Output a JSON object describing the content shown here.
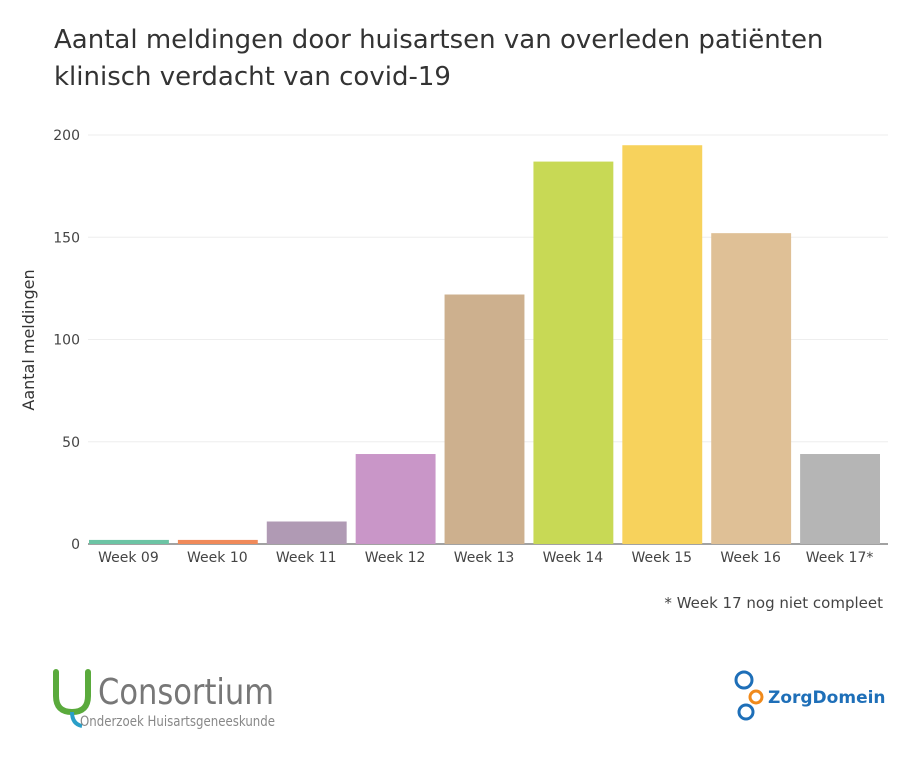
{
  "title_lines": [
    "Aantal meldingen door huisartsen van overleden patiënten",
    "klinisch verdacht van covid-19"
  ],
  "footnote": "* Week 17 nog niet compleet",
  "logos": {
    "consortium_main": "Consortium",
    "consortium_sub": "Onderzoek Huisartsgeneeskunde",
    "zorgdomein": "ZorgDomein"
  },
  "chart_data": {
    "type": "bar",
    "title": "Aantal meldingen door huisartsen van overleden patiënten klinisch verdacht van covid-19",
    "xlabel": "",
    "ylabel": "Aantal meldingen",
    "categories": [
      "Week 09",
      "Week 10",
      "Week 11",
      "Week 12",
      "Week 13",
      "Week 14",
      "Week 15",
      "Week 16",
      "Week 17*"
    ],
    "values": [
      2,
      2,
      11,
      44,
      122,
      187,
      195,
      152,
      44
    ],
    "colors": [
      "#6cc4a4",
      "#f08a5a",
      "#b09ab4",
      "#c996c8",
      "#cdb08e",
      "#c8d955",
      "#f7d25c",
      "#dfc096",
      "#b5b5b5"
    ],
    "ylim": [
      0,
      200
    ],
    "yticks": [
      0,
      50,
      100,
      150,
      200
    ],
    "grid": true,
    "legend": "none"
  }
}
